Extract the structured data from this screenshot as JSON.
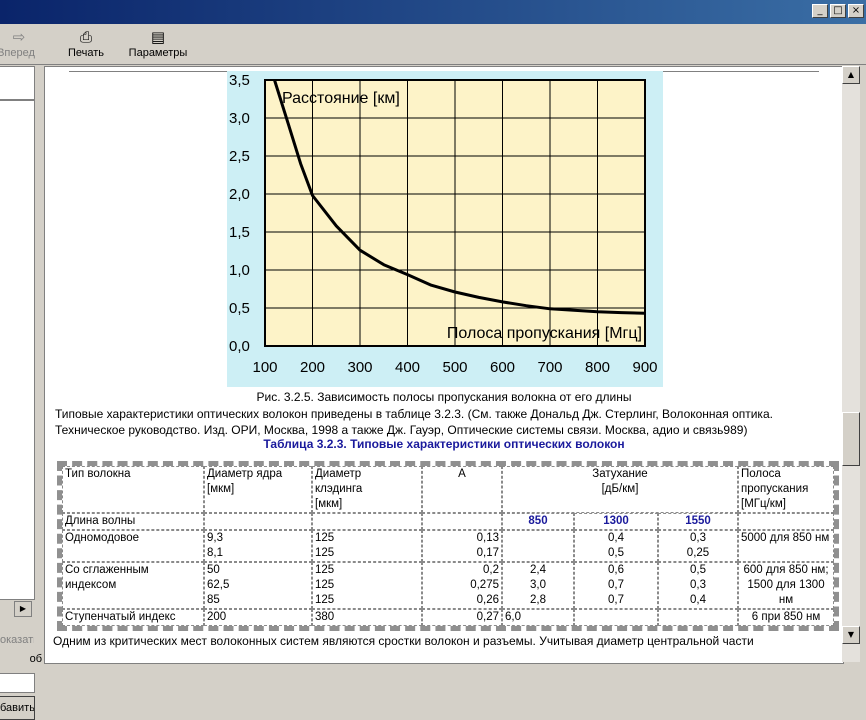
{
  "toolbar": {
    "forward_label": "Вперед",
    "print_label": "Печать",
    "options_label": "Параметры"
  },
  "leftpane": {
    "btn_show": "оказать",
    "btn_add": "бавить",
    "frag_label": "об"
  },
  "chart_data": {
    "type": "line",
    "annotations": [
      "Расстояние [км]",
      "Полоса пропускания [Мгц]"
    ],
    "x_ticks": [
      "100",
      "200",
      "300",
      "400",
      "500",
      "600",
      "700",
      "800",
      "900"
    ],
    "y_ticks": [
      "0,0",
      "0,5",
      "1,0",
      "1,5",
      "2,0",
      "2,5",
      "3,0",
      "3,5"
    ],
    "xlim": [
      100,
      900
    ],
    "ylim": [
      0,
      3.5
    ],
    "grid": true,
    "colors": {
      "background": "#fdf3c8",
      "frame": "#cdeff5",
      "line": "#000000"
    },
    "x": [
      120,
      150,
      175,
      200,
      250,
      300,
      350,
      400,
      450,
      500,
      550,
      600,
      650,
      700,
      750,
      800,
      850,
      900
    ],
    "y": [
      3.5,
      2.9,
      2.4,
      1.98,
      1.58,
      1.26,
      1.07,
      0.94,
      0.8,
      0.71,
      0.64,
      0.58,
      0.53,
      0.49,
      0.47,
      0.45,
      0.44,
      0.43
    ]
  },
  "caption": "Рис. 3.2.5. Зависимость полосы пропускания волокна от его длины",
  "paragraph_1": "Типовые характеристики оптических волокон приведены в таблице 3.2.3. (См. также Дональд Дж. Стерлинг, Волоконная оптика.",
  "paragraph_2": "Техническое руководство. Изд. ОРИ, Москва, 1998 а также Дж. Гауэр, Оптические системы связи. Москва, адио и связь989)",
  "table_title": "Таблица 3.2.3. Типовые характеристики оптических волокон",
  "table": {
    "h_type": "Тип волокна",
    "h_core_1": "Диаметр ядра",
    "h_core_2": "[мкм]",
    "h_clad_1": "Диаметр",
    "h_clad_2": "клэдинга",
    "h_clad_3": "[мкм]",
    "h_a": "A",
    "h_att_1": "Затухание",
    "h_att_2": "[дБ/км]",
    "h_bw_1": "Полоса",
    "h_bw_2": "пропускания",
    "h_bw_3": "[МГц/км]",
    "wl_label": "Длина волны",
    "wl_850": "850",
    "wl_1300": "1300",
    "wl_1550": "1550",
    "sm_name": "Одномодовое",
    "sm_core": [
      "9,3",
      "8,1"
    ],
    "sm_clad": [
      "125",
      "125"
    ],
    "sm_a": [
      "0,13",
      "0,17"
    ],
    "sm_1300": [
      "0,4",
      "0,5"
    ],
    "sm_1550": [
      "0,3",
      "0,25"
    ],
    "sm_bw": "5000 для 850 нм",
    "gi_name_1": "Со сглаженным",
    "gi_name_2": "индексом",
    "gi_core": [
      "50",
      "62,5",
      "85"
    ],
    "gi_clad": [
      "125",
      "125",
      "125"
    ],
    "gi_a": [
      "0,2",
      "0,275",
      "0,26"
    ],
    "gi_850": [
      "2,4",
      "3,0",
      "2,8"
    ],
    "gi_1300": [
      "0,6",
      "0,7",
      "0,7"
    ],
    "gi_1550": [
      "0,5",
      "0,3",
      "0,4"
    ],
    "gi_bw_1": "600 для 850 нм;",
    "gi_bw_2": "1500 для 1300",
    "gi_bw_3": "нм",
    "si_name": "Ступенчатый индекс",
    "si_core": "200",
    "si_clad": "380",
    "si_a": "0,27",
    "si_850": "6,0",
    "si_bw": "6 при 850 нм"
  },
  "bottom_text": "Одним из критических мест волоконных систем являются сростки волокон и разъемы. Учитывая диаметр центральной части"
}
